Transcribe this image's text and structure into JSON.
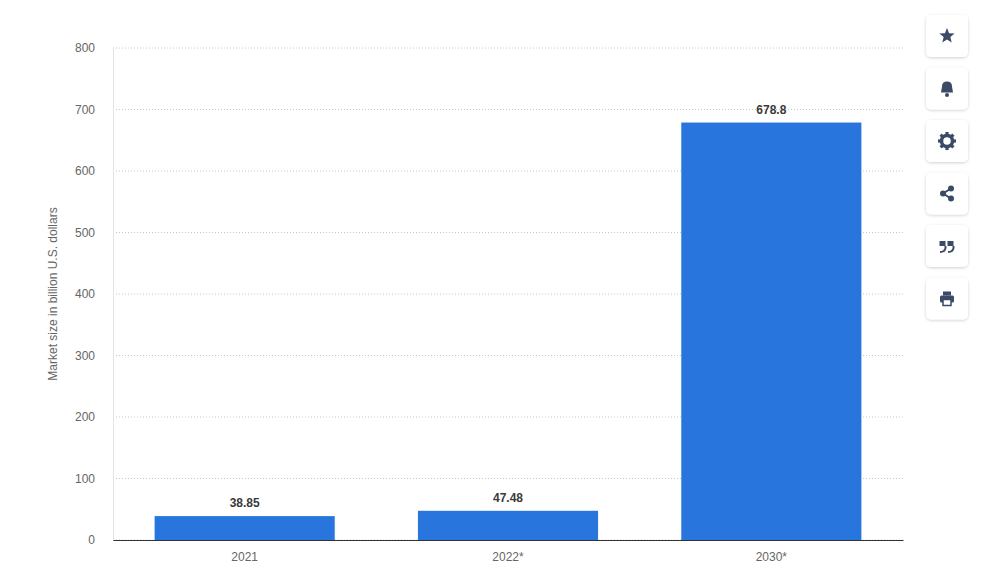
{
  "chart_data": {
    "type": "bar",
    "y_label": "Market size in billion U.S. dollars",
    "categories": [
      "2021",
      "2022*",
      "2030*"
    ],
    "values": [
      38.85,
      47.48,
      678.8
    ],
    "color": "#2876dd",
    "ylim": [
      0,
      800
    ],
    "yticks": [
      0,
      100,
      200,
      300,
      400,
      500,
      600,
      700,
      800
    ],
    "grid": true,
    "data_labels": true
  }
}
